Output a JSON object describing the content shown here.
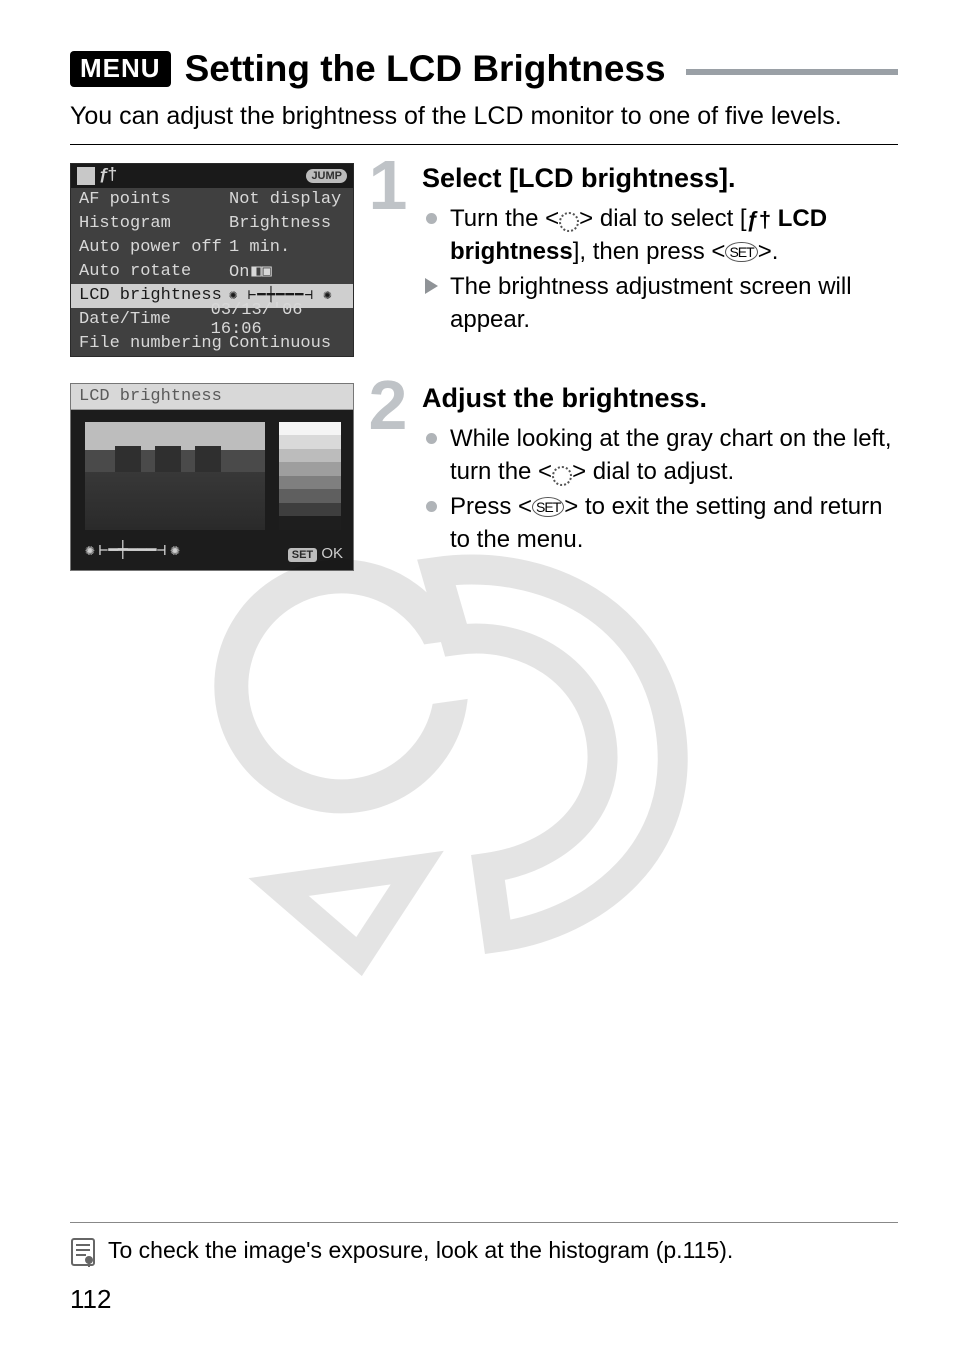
{
  "title": {
    "menu_badge": "MENU",
    "text": "Setting the LCD Brightness"
  },
  "intro": "You can adjust the brightness of the LCD monitor to one of five levels.",
  "step1": {
    "number": "1",
    "heading": "Select [LCD brightness].",
    "bullet1_pre": "Turn the <",
    "bullet1_mid": "> dial to select [",
    "bullet1_label": " LCD brightness",
    "bullet1_post": "], then press <",
    "bullet1_end": ">.",
    "bullet2": "The brightness adjustment screen will appear."
  },
  "step2": {
    "number": "2",
    "heading": "Adjust the brightness.",
    "bullet1_pre": "While looking at the gray chart on the left, turn the <",
    "bullet1_post": "> dial to adjust.",
    "bullet2_pre": "Press <",
    "bullet2_post": "> to exit the setting and return to the menu."
  },
  "lcd1": {
    "jump": "JUMP",
    "rows": [
      {
        "k": "AF points",
        "v": "Not display"
      },
      {
        "k": "Histogram",
        "v": "Brightness"
      },
      {
        "k": "Auto power off",
        "v": "1 min."
      },
      {
        "k": "Auto rotate",
        "v": "On"
      },
      {
        "k": "LCD brightness",
        "v": "",
        "selected": true
      },
      {
        "k": "Date/Time",
        "v": "03/13/'06 16:06"
      },
      {
        "k": "File numbering",
        "v": "Continuous"
      }
    ],
    "auto_rotate_icons": "◧▣"
  },
  "lcd2": {
    "head": "LCD brightness",
    "set_label": "SET",
    "ok_label": "OK",
    "gray_steps": [
      "#f4f4f4",
      "#d9d9d9",
      "#bcbcbc",
      "#9e9e9e",
      "#7f7f7f",
      "#5f5f5f",
      "#3e3e3e",
      "#1e1e1e"
    ]
  },
  "note": "To check the image's exposure, look at the histogram (p.115).",
  "page_number": "112",
  "colors": {
    "title_rule": "#9aa0a6",
    "big_num": "#bfc3c7",
    "li_dot": "#b0b4b8",
    "li_tri": "#8f9397"
  }
}
